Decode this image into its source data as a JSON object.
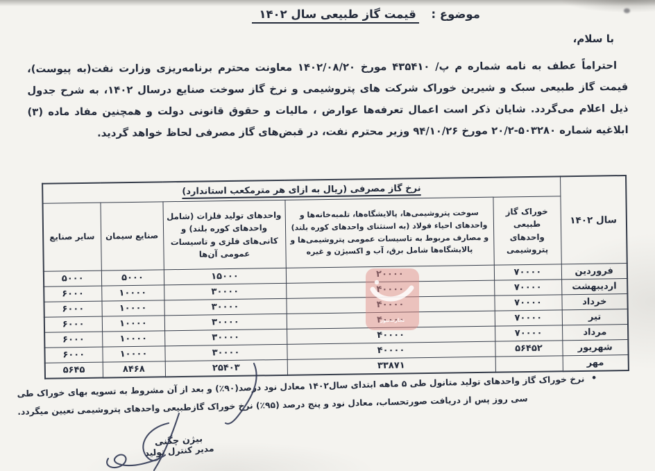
{
  "document": {
    "subject_label": "موضوع :",
    "subject_value": "قیمت گاز طبیعی سال ۱۴۰۲",
    "greeting": "با سلام،",
    "body": "احتراماً عطف به نامه شماره م پ/ ۴۳۵۴۱۰ مورخ ۱۴۰۲/۰۸/۲۰ معاونت محترم برنامه‌ریزی وزارت نفت(به پیوست)، قیمت گاز طبیعی سبک و شیرین خوراک شرکت های پتروشیمی و نرخ گاز سوخت صنایع درسال ۱۴۰۲، به شرح جدول ذیل اعلام می‌گردد. شایان ذکر است اعمال تعرفه‌ها عوارض ، مالیات و حقوق قانونی دولت و همچنین مفاد ماده (۳) ابلاغیه شماره ۵۰۳۲۸۰-۲۰/۲ مورخ ۹۴/۱۰/۲۶ وزیر محترم نفت، در قبض‌های گاز مصرفی لحاظ خواهد گردید.",
    "footnote_bullet": "•",
    "footnote": "نرخ خوراک گاز واحدهای تولید متانول طی ۵ ماهه ابتدای سال۱۴۰۲ معادل نود درصد(۹۰٪) و بعد از آن مشروط به تسویه بهای خوراک طی سی روز پس از دریافت صورتحساب، معادل نود و پنج درصد (۹۵٪) نرخ خوراک گازطبیعی واحدهای پتروشیمی تعیین میگردد.",
    "signature": {
      "name": "بیژن چگنی",
      "title": "مدیر کنترل تولید"
    }
  },
  "table": {
    "year_header": "سال ۱۴۰۲",
    "rate_header": "نرخ گاز مصرفی (ریال به ازای هر مترمکعب استاندارد)",
    "columns": [
      "خوراک گاز طبیعی واحدهای پتروشیمی",
      "سوخت پتروشیمی‌ها، پالایشگاه‌ها، تلمبه‌خانه‌ها و واحدهای احیاء فولاد (به استثنای واحدهای کوره بلند) و مصارف مربوط به تاسیسات عمومی پتروشیمی‌ها و پالایشگاه‌ها شامل برق، آب و اکسیژن و غیره",
      "واحدهای تولید فلزات (شامل واحدهای کوره بلند) و کانی‌های فلزی و تاسیسات عمومی آن‌ها",
      "صنایع سیمان",
      "سایر صنایع"
    ],
    "rows": [
      {
        "month": "فروردین",
        "values": [
          "۷۰۰۰۰",
          "۲۰۰۰۰",
          "۱۵۰۰۰",
          "۵۰۰۰",
          "۵۰۰۰"
        ]
      },
      {
        "month": "اردیبهشت",
        "values": [
          "۷۰۰۰۰",
          "۴۰۰۰۰",
          "۳۰۰۰۰",
          "۱۰۰۰۰",
          "۶۰۰۰"
        ]
      },
      {
        "month": "خرداد",
        "values": [
          "۷۰۰۰۰",
          "۴۰۰۰۰",
          "۳۰۰۰۰",
          "۱۰۰۰۰",
          "۶۰۰۰"
        ]
      },
      {
        "month": "تیر",
        "values": [
          "۷۰۰۰۰",
          "۴۰۰۰۰",
          "۳۰۰۰۰",
          "۱۰۰۰۰",
          "۶۰۰۰"
        ]
      },
      {
        "month": "مرداد",
        "values": [
          "۷۰۰۰۰",
          "۴۰۰۰۰",
          "۳۰۰۰۰",
          "۱۰۰۰۰",
          "۶۰۰۰"
        ]
      },
      {
        "month": "شهریور",
        "values": [
          "۵۶۴۵۲",
          "۴۰۰۰۰",
          "۳۰۰۰۰",
          "۱۰۰۰۰",
          "۶۰۰۰"
        ]
      },
      {
        "month": "مهر",
        "values": [
          "",
          "۳۳۸۷۱",
          "۲۵۴۰۳",
          "۸۴۶۸",
          "۵۶۴۵"
        ]
      }
    ]
  },
  "watermark": {
    "text": "تجارت‌نیوز",
    "color": "#e28b86"
  },
  "colors": {
    "ink": "#232a3a",
    "paper": "#f4f3ef",
    "border": "#343b49"
  }
}
